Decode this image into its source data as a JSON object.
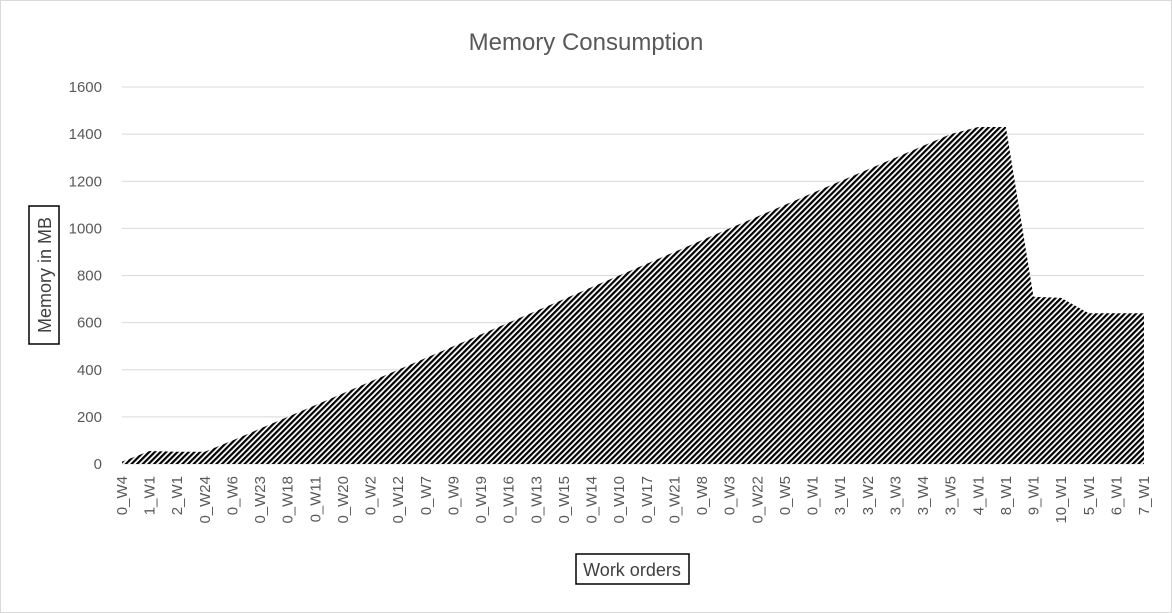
{
  "chart_data": {
    "type": "area",
    "title": "Memory Consumption",
    "xlabel": "Work orders",
    "ylabel": "Memory in MB",
    "ylim": [
      0,
      1600
    ],
    "yticks": [
      0,
      200,
      400,
      600,
      800,
      1000,
      1200,
      1400,
      1600
    ],
    "grid": true,
    "legend": "none",
    "fill_pattern": "diagonal-hatch",
    "colors": {
      "fill": "#000000",
      "grid": "#d9d9d9",
      "text": "#595959"
    },
    "x_tick_labels": [
      "0_W4",
      "1_W1",
      "2_W1",
      "0_W24",
      "0_W6",
      "0_W23",
      "0_W18",
      "0_W11",
      "0_W20",
      "0_W2",
      "0_W12",
      "0_W7",
      "0_W9",
      "0_W19",
      "0_W16",
      "0_W13",
      "0_W15",
      "0_W14",
      "0_W10",
      "0_W17",
      "0_W21",
      "0_W8",
      "0_W3",
      "0_W22",
      "0_W5",
      "0_W1",
      "3_W1",
      "3_W2",
      "3_W3",
      "3_W4",
      "3_W5",
      "4_W1",
      "8_W1",
      "9_W1",
      "10_W1",
      "5_W1",
      "6_W1",
      "7_W1"
    ],
    "series": [
      {
        "x": [
          0,
          1,
          2,
          3,
          4,
          5,
          6,
          7,
          8,
          9,
          10,
          11,
          12,
          13,
          14,
          15,
          16,
          17,
          18,
          19,
          20,
          21,
          22,
          23,
          24,
          25,
          26,
          27,
          28,
          29,
          30,
          31,
          32,
          33,
          34,
          35,
          36,
          37
        ],
        "values": [
          10,
          55,
          52,
          52,
          100,
          150,
          200,
          250,
          300,
          350,
          400,
          450,
          500,
          550,
          600,
          650,
          700,
          750,
          800,
          850,
          900,
          950,
          1000,
          1050,
          1100,
          1150,
          1200,
          1250,
          1300,
          1350,
          1400,
          1430,
          1430,
          710,
          705,
          640,
          640,
          640
        ]
      }
    ]
  }
}
